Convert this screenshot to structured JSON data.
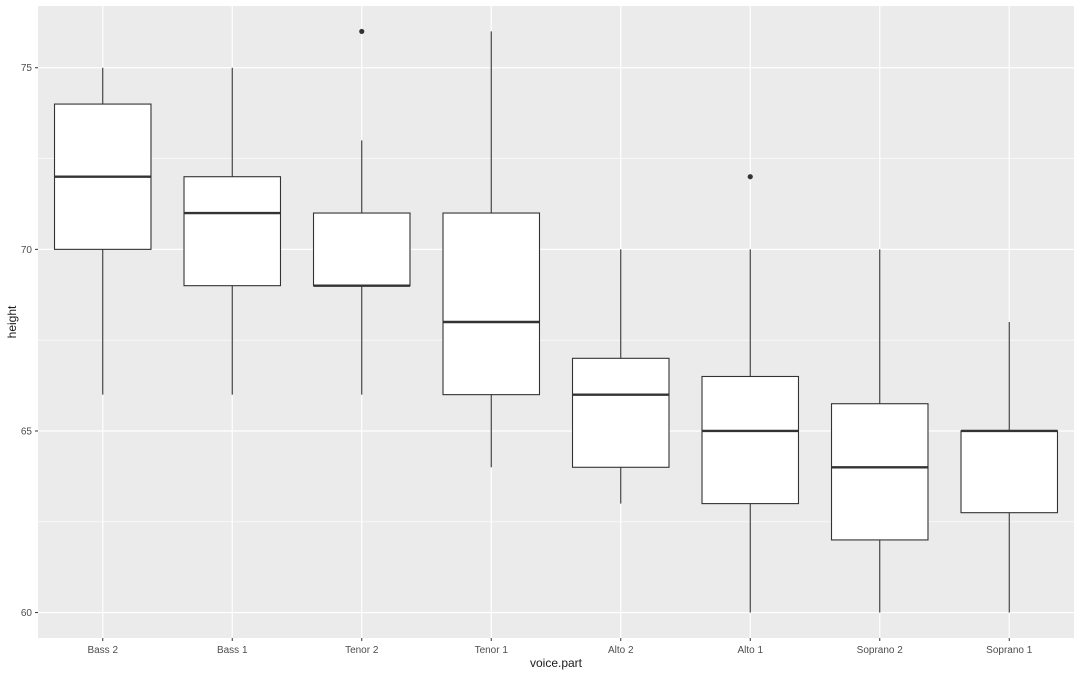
{
  "chart_data": {
    "type": "boxplot",
    "xlabel": "voice.part",
    "ylabel": "height",
    "ylim": [
      59.3,
      76.7
    ],
    "y_ticks": [
      60,
      65,
      70,
      75
    ],
    "y_minor_ticks": [
      62.5,
      67.5,
      72.5
    ],
    "grid": true,
    "colors": {
      "panel": "#ebebeb",
      "grid": "#ffffff",
      "box_fill": "#ffffff",
      "box_stroke": "#333333",
      "outlier": "#333333"
    },
    "categories": [
      "Bass 2",
      "Bass 1",
      "Tenor 2",
      "Tenor 1",
      "Alto 2",
      "Alto 1",
      "Soprano 2",
      "Soprano 1"
    ],
    "boxes": [
      {
        "category": "Bass 2",
        "lower_whisker": 66,
        "q1": 70,
        "median": 72,
        "q3": 74,
        "upper_whisker": 75,
        "outliers": []
      },
      {
        "category": "Bass 1",
        "lower_whisker": 66,
        "q1": 69,
        "median": 71,
        "q3": 72,
        "upper_whisker": 75,
        "outliers": []
      },
      {
        "category": "Tenor 2",
        "lower_whisker": 66,
        "q1": 69,
        "median": 69,
        "q3": 71,
        "upper_whisker": 73,
        "outliers": [
          76
        ]
      },
      {
        "category": "Tenor 1",
        "lower_whisker": 64,
        "q1": 66,
        "median": 68,
        "q3": 71,
        "upper_whisker": 76,
        "outliers": []
      },
      {
        "category": "Alto 2",
        "lower_whisker": 63,
        "q1": 64,
        "median": 66,
        "q3": 67,
        "upper_whisker": 70,
        "outliers": []
      },
      {
        "category": "Alto 1",
        "lower_whisker": 60,
        "q1": 63,
        "median": 65,
        "q3": 66.5,
        "upper_whisker": 70,
        "outliers": [
          72
        ]
      },
      {
        "category": "Soprano 2",
        "lower_whisker": 60,
        "q1": 62,
        "median": 64,
        "q3": 65.75,
        "upper_whisker": 70,
        "outliers": []
      },
      {
        "category": "Soprano 1",
        "lower_whisker": 60,
        "q1": 62.75,
        "median": 65,
        "q3": 65,
        "upper_whisker": 68,
        "outliers": []
      }
    ]
  }
}
